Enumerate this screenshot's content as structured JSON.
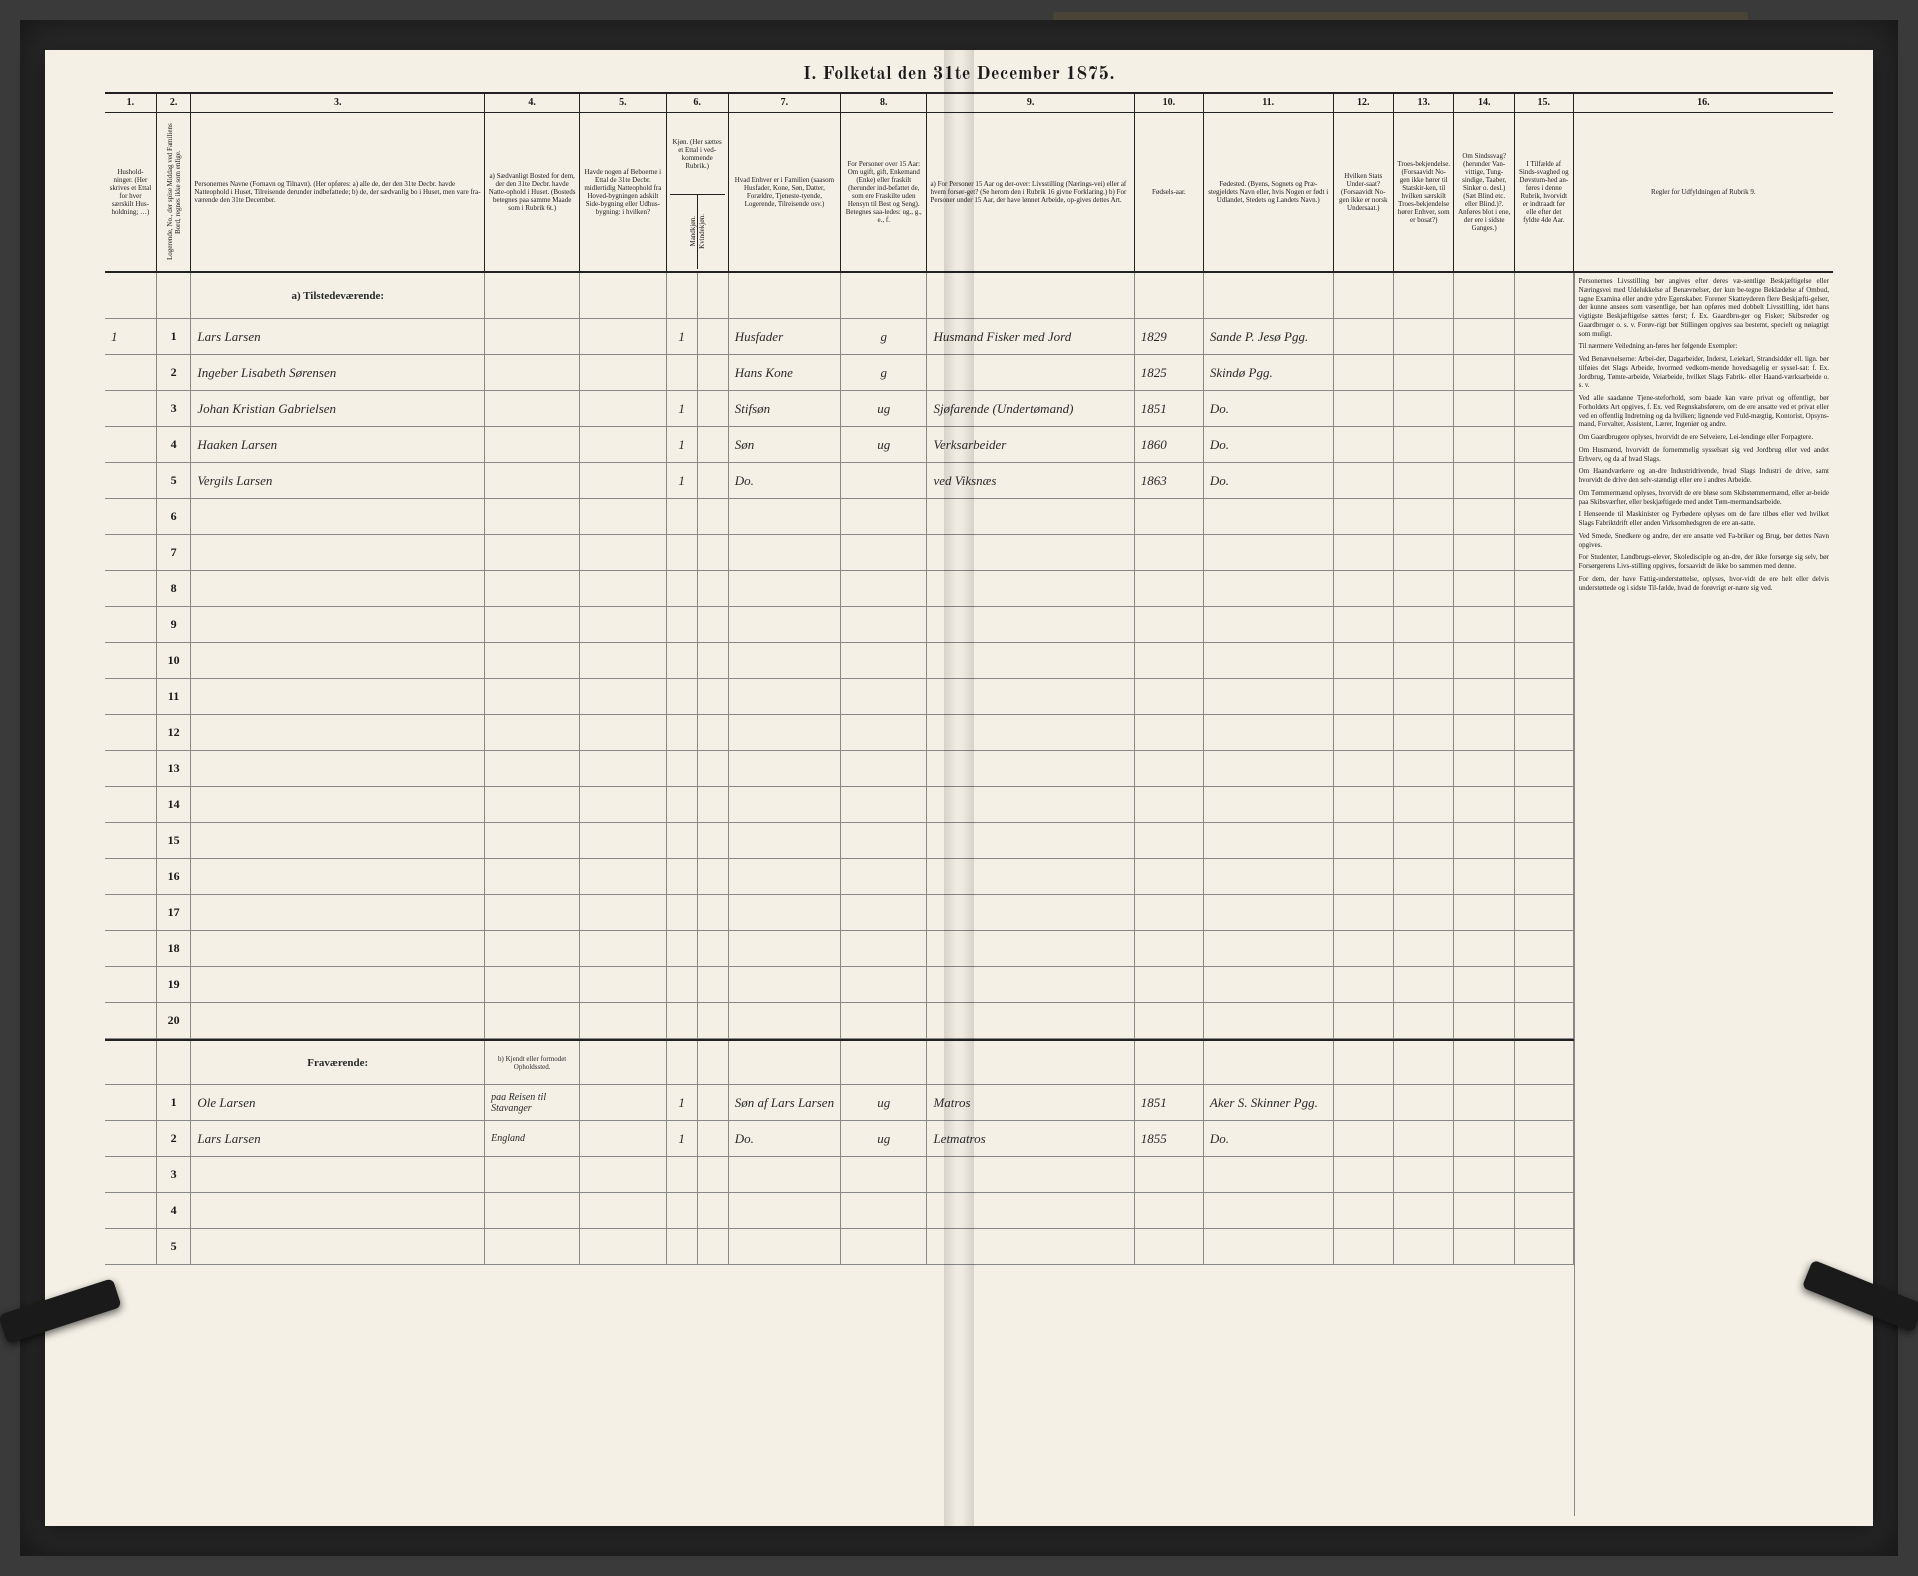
{
  "title": "I. Folketal den 31te December 1875.",
  "columns": {
    "n1": "1.",
    "n2": "2.",
    "n3": "3.",
    "n4": "4.",
    "n5": "5.",
    "n6": "6.",
    "n7": "7.",
    "n8": "8.",
    "n9": "9.",
    "n10": "10.",
    "n11": "11.",
    "n12": "12.",
    "n13": "13.",
    "n14": "14.",
    "n15": "15.",
    "n16": "16.",
    "h1": "Hushold-ninger. (Her skrives et Ettal for hver særskilt Hus-holdning; …)",
    "h2": "Logerende, No., der spise Middag ved Familiens Bord, regnes ikke som enlige.",
    "h3": "Personernes Navne (Fornavn og Tilnavn). (Her opføres: a) alle de, der den 31te Decbr. havde Natteophold i Huset, Tilreisende derunder indbefattede; b) de, der sædvanlig bo i Huset, men vare fra-værende den 31te December.",
    "h4": "a) Sædvanligt Bosted for dem, der den 31te Decbr. havde Natte-ophold i Huset. (Bosteds betegnes paa samme Maade som i Rubrik 6t.)",
    "h5": "Havde nogen af Beboerne i Ettal de 31te Decbr. midlertidig Natteophold fra Hoved-bygningen adskilt Side-bygning eller Udhus-bygning: i hvilken?",
    "h6": "Kjøn. (Her sættes et Ettal i ved-kommende Rubrik.)",
    "h6a": "Mandkjøn.",
    "h6b": "Kvindekjøn.",
    "h7": "Hvad Enhver er i Familien (saasom Husfader, Kone, Søn, Datter, Forældre, Tjeneste-tyende, Logerende, Tilreisende osv.)",
    "h8": "For Personer over 15 Aar: Om ugift, gift, Enkemand (Enke) eller fraskilt (herunder ind-befattet de, som ere Fraskilte uden Hensyn til Best og Seng). Betegnes saa-ledes: ug., g., e., f.",
    "h9": "a) For Personer 15 Aar og der-over: Livsstilling (Nærings-vei) eller af hvem forsør-get? (Se herom den i Rubrik 16 givne Forklaring.) b) For Personer under 15 Aar, der have lønnet Arbeide, op-gives dettes Art.",
    "h10": "Fødsels-aar.",
    "h11": "Fødested. (Byens, Sognets og Præ-stegjeldets Navn eller, hvis Nogen er født i Udlandet, Stedets og Landets Navn.)",
    "h12": "Hvilken Stats Under-saat? (Forsaavidt No-gen ikke er norsk Undersaat.)",
    "h13": "Troes-bekjendelse. (Forsaavidt No-gen ikke hører til Statskir-ken, til hvilken særskilt Troes-bekjendelse hører Enhver, som er bosat?)",
    "h14": "Om Sindssvag? (herunder Van-vittige, Tung-sindige, Taaber, Sinker o. desl.) (Sæt Blind etc. eller Blind.)?. Anføres blot i ene, der ere i sidste Ganges.)",
    "h15": "I Tilfælde af Sinds-svaghed og Døvstum-hed an-føres i denne Rubrik, hvorvidt er indtraadt før elle efter det fyldte 4de Aar.",
    "h16": "Regler for Udfyldningen af Rubrik 9."
  },
  "section_a": "a) Tilstedeværende:",
  "section_b": "Fraværende:",
  "section_b_col4": "b) Kjendt eller formodet Opholdssted.",
  "rows_a": [
    {
      "hh": "1",
      "pn": "1",
      "name": "Lars Larsen",
      "c4": "",
      "k": "1",
      "rel": "Husfader",
      "civ": "g",
      "occ": "Husmand Fisker med Jord",
      "year": "1829",
      "place": "Sande P. Jesø Pgg."
    },
    {
      "hh": "",
      "pn": "2",
      "name": "Ingeber Lisabeth Sørensen",
      "c4": "",
      "k": "",
      "rel": "Hans Kone",
      "civ": "g",
      "occ": "",
      "year": "1825",
      "place": "Skindø Pgg."
    },
    {
      "hh": "",
      "pn": "3",
      "name": "Johan Kristian Gabrielsen",
      "c4": "",
      "k": "1",
      "rel": "Stifsøn",
      "civ": "ug",
      "occ": "Sjøfarende (Undertømand)",
      "year": "1851",
      "place": "Do."
    },
    {
      "hh": "",
      "pn": "4",
      "name": "Haaken Larsen",
      "c4": "",
      "k": "1",
      "rel": "Søn",
      "civ": "ug",
      "occ": "Verksarbeider",
      "year": "1860",
      "place": "Do."
    },
    {
      "hh": "",
      "pn": "5",
      "name": "Vergils Larsen",
      "c4": "",
      "k": "1",
      "rel": "Do.",
      "civ": "",
      "occ": "ved Viksnæs",
      "year": "1863",
      "place": "Do."
    }
  ],
  "empty_a": [
    "6",
    "7",
    "8",
    "9",
    "10",
    "11",
    "12",
    "13",
    "14",
    "15",
    "16",
    "17",
    "18",
    "19",
    "20"
  ],
  "rows_b": [
    {
      "pn": "1",
      "name": "Ole Larsen",
      "c4": "paa Reisen til Stavanger",
      "k": "1",
      "rel": "Søn af Lars Larsen",
      "civ": "ug",
      "occ": "Matros",
      "year": "1851",
      "place": "Aker S. Skinner Pgg."
    },
    {
      "pn": "2",
      "name": "Lars Larsen",
      "c4": "England",
      "k": "1",
      "rel": "Do.",
      "civ": "ug",
      "occ": "Letmatros",
      "year": "1855",
      "place": "Do."
    }
  ],
  "empty_b": [
    "3",
    "4",
    "5"
  ],
  "rules": [
    "Personernes Livsstilling bør angives efter deres væ-sentlige Beskjæftigelse eller Næringsvei med Udelukkelse af Benævnelser, der kun be-tegne Beklædelse af Ombud, tagne Examina eller andre ydre Egenskaber. Forener Skatteyderen flere Beskjæfti-gelser, der kunne ansees som væsentlige, bør han opføres med dobbelt Livsstilling, idet hans vigtigste Beskjæftigelse sættes først; f. Ex. Gaardbru-ger og Fisker; Skibsreder og Gaardbruger o. s. v. Forøv-rigt bør Stillingen opgives saa bestemt, specielt og nøiagtigt som muligt.",
    "Til nærmere Veiledning an-føres her følgende Exempler:",
    "Ved Benævnelserne: Arbei-der, Dagarbeider, Inderst, Leiekarl, Strandsidder ell. lign. bør tilføies det Slags Arbeide, hvormed vedkom-mende hovedsagelig er syssel-sat: f. Ex. Jordbrug, Tømte-arbeide, Veiarbeide, hvilket Slags Fabrik- eller Haand-værksarbeide o. s. v.",
    "Ved alle saadanne Tjene-steforhold, som baade kan være privat og offentligt, bør Forholdets Art opgives, f. Ex. ved Regnskabsførere, om de ere ansatte ved et privat eller ved en offentlig Indretning og da hvilken; lignende ved Fuld-mægtig, Kontorist, Opsyns-mand, Forvalter, Assistent, Lærer, Ingeniør og andre.",
    "Om Gaardbrugere oplyses, hvorvidt de ere Selveiere, Lei-lendinge eller Forpagtere.",
    "Om Husmænd, hvorvidt de fornemmelig sysselsæt sig ved Jordbrug eller ved andet Erhverv, og da af hvad Slags.",
    "Om Haandværkere og an-dre Industridrivende, hvad Slags Industri de drive, samt hvorvidt de drive den selv-stændigt eller ere i andres Arbeide.",
    "Om Tømmermænd oplyses, hvorvidt de ere bløse som Skibstømmermænd, eller ar-beide paa Skibsværfter, eller beskjæftigede med andet Tøm-mermandsarbeide.",
    "I Henseende til Maskinister og Fyrbødere oplyses om de fare tilbøs eller ved hvilket Slags Fabriktdrift eller anden Virksomhedsgren de ere an-satte.",
    "Ved Smede, Snedkere og andre, der ere ansatte ved Fa-briker og Brug, bør dettes Navn opgives.",
    "For Studenter, Landbrugs-elever, Skoledisciple og an-dre, der ikke forsørge sig selv, bør Forsørgerens Livs-stilling opgives, forsaavidt de ikke bo sammen med denne.",
    "For dem, der have Fattig-understøttelse, oplyses, hvor-vidt de ere helt eller delvis understøttede og i sidste Til-fælde, hvad de forøvrigt er-nære sig ved."
  ],
  "colors": {
    "paper": "#f4f0e6",
    "ink": "#1a1a1a",
    "rule": "#888888",
    "heavy_rule": "#222222",
    "frame": "#2b2b2b",
    "bg": "#3a3a3a"
  }
}
